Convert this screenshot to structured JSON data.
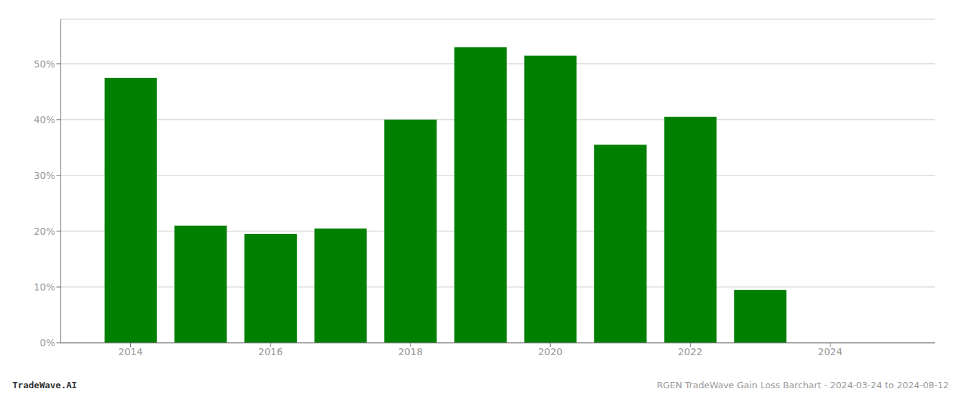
{
  "chart_data": {
    "type": "bar",
    "x": [
      2014,
      2015,
      2016,
      2017,
      2018,
      2019,
      2020,
      2021,
      2022,
      2023
    ],
    "values": [
      47.5,
      21.0,
      19.5,
      20.5,
      40.0,
      53.0,
      51.5,
      35.5,
      40.5,
      9.5
    ],
    "color": "#008000",
    "xlim": [
      2013.0,
      2025.5
    ],
    "xticks": [
      2014,
      2016,
      2018,
      2020,
      2022,
      2024
    ],
    "ylim": [
      0,
      58
    ],
    "yticks": [
      {
        "value": 0,
        "label": "0%"
      },
      {
        "value": 10,
        "label": "10%"
      },
      {
        "value": 20,
        "label": "20%"
      },
      {
        "value": 30,
        "label": "30%"
      },
      {
        "value": 40,
        "label": "40%"
      },
      {
        "value": 50,
        "label": "50%"
      }
    ],
    "grid": true,
    "annotations": [
      "TradeWave.AI",
      "RGEN TradeWave Gain Loss Barchart - 2024-03-24 to 2024-08-12"
    ]
  }
}
